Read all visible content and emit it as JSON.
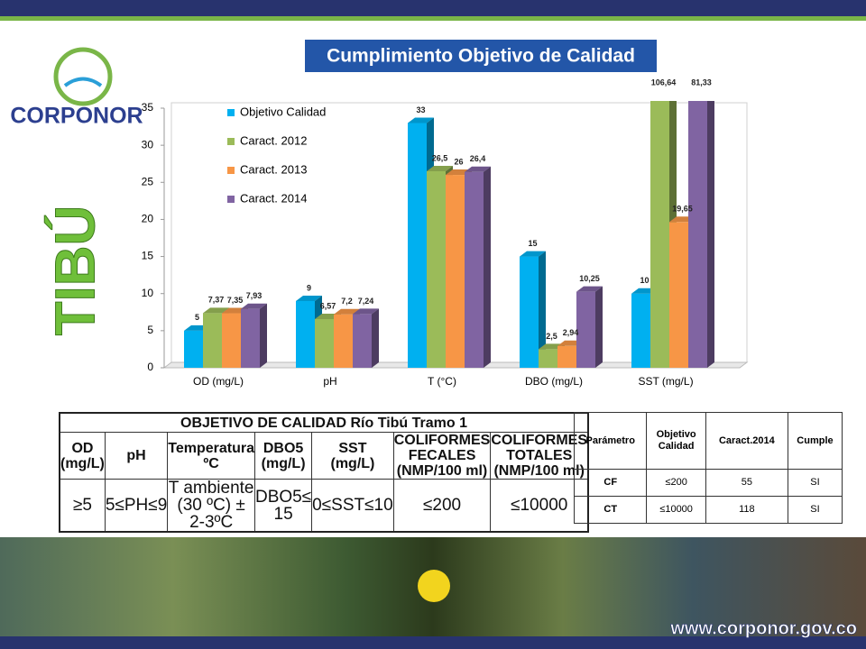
{
  "logo": {
    "name": "CORPONOR"
  },
  "side_title": "TIBÚ",
  "footer": {
    "website": "www.corponor.gov.co"
  },
  "chart_data": {
    "type": "bar",
    "title": "Cumplimiento Objetivo de Calidad",
    "categories": [
      "OD (mg/L)",
      "pH",
      "T (°C)",
      "DBO (mg/L)",
      "SST (mg/L)"
    ],
    "series": [
      {
        "name": "Objetivo Calidad",
        "color": "#00b0f0",
        "values": [
          5,
          9,
          33,
          15,
          10
        ],
        "value_labels": [
          "5",
          "9",
          "33",
          "15",
          "10"
        ]
      },
      {
        "name": "Caract. 2012",
        "color": "#9bbb59",
        "values": [
          7.37,
          6.57,
          26.5,
          2.5,
          106.64
        ],
        "value_labels": [
          "7,37",
          "6,57",
          "26,5",
          "2,5",
          "106,64"
        ]
      },
      {
        "name": "Caract. 2013",
        "color": "#f79646",
        "values": [
          7.35,
          7.2,
          26,
          2.94,
          19.65
        ],
        "value_labels": [
          "7,35",
          "7,2",
          "26",
          "2,94",
          "19,65"
        ]
      },
      {
        "name": "Caract. 2014",
        "color": "#8064a2",
        "values": [
          7.93,
          7.24,
          26.4,
          10.25,
          81.33
        ],
        "value_labels": [
          "7,93",
          "7,24",
          "26,4",
          "10,25",
          "81,33"
        ]
      }
    ],
    "ylim": [
      0,
      35
    ],
    "yticks": [
      0,
      5,
      10,
      15,
      20,
      25,
      30,
      35
    ],
    "legend": "top-left"
  },
  "table1": {
    "title": "OBJETIVO DE CALIDAD Río Tibú Tramo 1",
    "headers": [
      [
        "OD",
        "(mg/L)"
      ],
      [
        "pH"
      ],
      [
        "Temperatura",
        "ºC"
      ],
      [
        "DBO5",
        "(mg/L)"
      ],
      [
        "SST",
        "(mg/L)"
      ],
      [
        "COLIFORMES",
        "FECALES",
        "(NMP/100 ml)"
      ],
      [
        "COLIFORMES",
        "TOTALES",
        "(NMP/100 ml)"
      ]
    ],
    "values": [
      [
        "≥5"
      ],
      [
        "5≤PH≤9"
      ],
      [
        "T ambiente",
        "(30 ºC) ± 2-3ºC"
      ],
      [
        "DBO5≤ 15"
      ],
      [
        "0≤SST≤10"
      ],
      [
        "≤200"
      ],
      [
        "≤10000"
      ]
    ]
  },
  "table2": {
    "headers": [
      [
        "Parámetro"
      ],
      [
        "Objetivo",
        "Calidad"
      ],
      [
        "Caract.2014"
      ],
      [
        "Cumple"
      ]
    ],
    "rows": [
      [
        [
          "CF"
        ],
        [
          "≤200"
        ],
        [
          "55"
        ],
        [
          "SI"
        ]
      ],
      [
        [
          "CT"
        ],
        [
          "≤10000"
        ],
        [
          "118"
        ],
        [
          "SI"
        ]
      ]
    ]
  }
}
